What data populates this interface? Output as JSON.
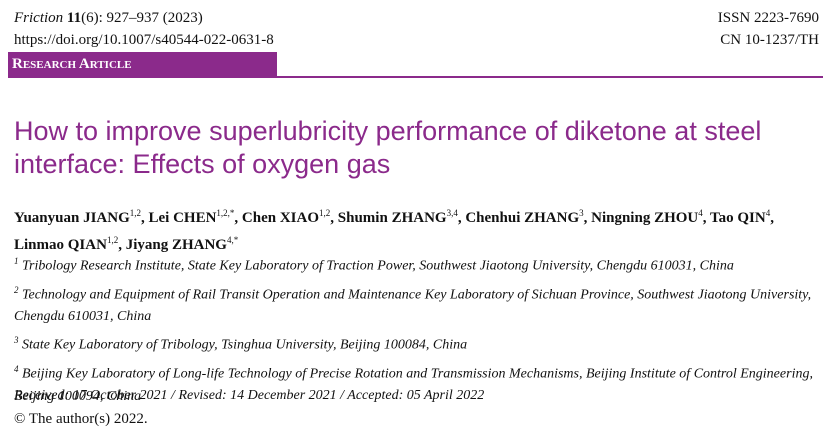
{
  "header": {
    "journal": "Friction",
    "volume": "11",
    "issue_pages": "(6): 927–937 (2023)",
    "doi": "https://doi.org/10.1007/s40544-022-0631-8",
    "issn": "ISSN 2223-7690",
    "cn": "CN 10-1237/TH"
  },
  "banner": "Research Article",
  "title": "How to improve superlubricity performance of diketone at steel interface: Effects of oxygen gas",
  "authors": [
    {
      "name": "Yuanyuan JIANG",
      "sup": "1,2"
    },
    {
      "name": "Lei CHEN",
      "sup": "1,2,*"
    },
    {
      "name": "Chen XIAO",
      "sup": "1,2"
    },
    {
      "name": "Shumin ZHANG",
      "sup": "3,4"
    },
    {
      "name": "Chenhui ZHANG",
      "sup": "3"
    },
    {
      "name": "Ningning ZHOU",
      "sup": "4"
    },
    {
      "name": "Tao QIN",
      "sup": "4"
    },
    {
      "name": "Linmao QIAN",
      "sup": "1,2"
    },
    {
      "name": "Jiyang ZHANG",
      "sup": "4,*"
    }
  ],
  "affiliations": [
    {
      "number": "1",
      "text": "Tribology Research Institute, State Key Laboratory of Traction Power, Southwest Jiaotong University, Chengdu 610031, China"
    },
    {
      "number": "2",
      "text": "Technology and Equipment of Rail Transit Operation and Maintenance Key Laboratory of Sichuan Province, Southwest Jiaotong University, Chengdu 610031, China"
    },
    {
      "number": "3",
      "text": "State Key Laboratory of Tribology, Tsinghua University, Beijing 100084, China"
    },
    {
      "number": "4",
      "text": "Beijing Key Laboratory of Long-life Technology of Precise Rotation and Transmission Mechanisms, Beijing Institute of Control Engineering, Beijing 100094, China"
    }
  ],
  "dates": "Received: 17 October 2021 / Revised: 14 December 2021 / Accepted: 05 April 2022",
  "copyright": "© The author(s) 2022."
}
